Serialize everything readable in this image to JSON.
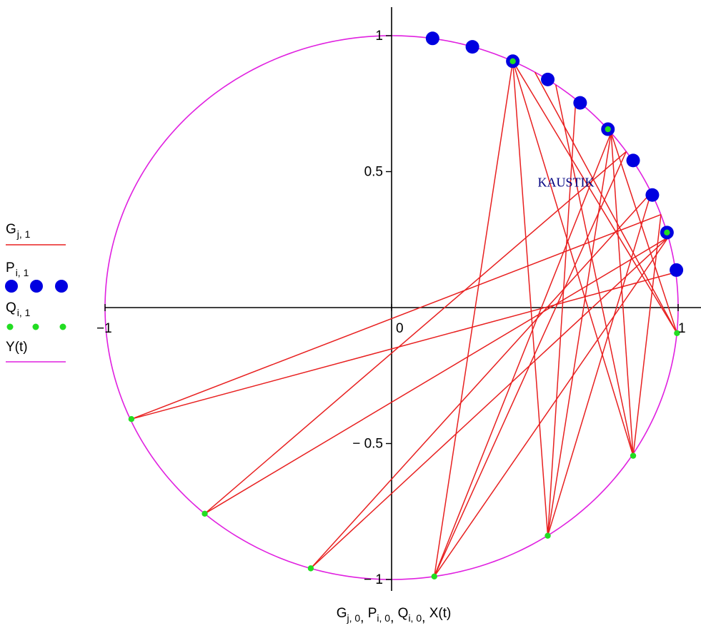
{
  "chart_data": {
    "type": "line",
    "xlim": [
      -1,
      1
    ],
    "ylim": [
      -1,
      1
    ],
    "grid": false,
    "legend_placement": "left",
    "x_ticks": [
      {
        "value": -1,
        "label": "−1"
      },
      {
        "value": 0,
        "label": "0"
      },
      {
        "value": 1,
        "label": "1"
      }
    ],
    "y_ticks": [
      {
        "value": 1,
        "label": "1"
      },
      {
        "value": 0.5,
        "label": "0.5"
      },
      {
        "value": -0.5,
        "label": "− 0.5"
      },
      {
        "value": -1,
        "label": "− 1"
      }
    ],
    "xlabel": {
      "terms": [
        {
          "base": "G",
          "sub": "j, 0"
        },
        {
          "base": "P",
          "sub": "i, 0"
        },
        {
          "base": "Q",
          "sub": "i, 0"
        },
        {
          "base": "X(t)",
          "sub": ""
        }
      ]
    },
    "annotation": {
      "text": "KAUSTIK",
      "x": 0.51,
      "y": 0.445,
      "color": "#000080"
    },
    "series": [
      {
        "name": "G",
        "legend_base": "G",
        "legend_sub": "j, 1",
        "style": "line",
        "color": "#e82020",
        "segments": [
          [
            [
              0.423,
              0.906
            ],
            [
              0.996,
              -0.094
            ]
          ],
          [
            [
              0.423,
              0.906
            ],
            [
              0.843,
              -0.545
            ]
          ],
          [
            [
              0.423,
              0.906
            ],
            [
              0.545,
              -0.839
            ]
          ],
          [
            [
              0.423,
              0.906
            ],
            [
              0.149,
              -0.989
            ]
          ],
          [
            [
              0.5,
              0.866
            ],
            [
              0.996,
              -0.094
            ]
          ],
          [
            [
              0.573,
              0.819
            ],
            [
              0.843,
              -0.545
            ]
          ],
          [
            [
              0.643,
              0.766
            ],
            [
              0.545,
              -0.839
            ]
          ],
          [
            [
              0.766,
              0.643
            ],
            [
              0.996,
              -0.094
            ]
          ],
          [
            [
              0.766,
              0.643
            ],
            [
              0.843,
              -0.545
            ]
          ],
          [
            [
              0.766,
              0.643
            ],
            [
              0.545,
              -0.839
            ]
          ],
          [
            [
              0.766,
              0.643
            ],
            [
              0.149,
              -0.989
            ]
          ],
          [
            [
              0.819,
              0.574
            ],
            [
              0.149,
              -0.989
            ]
          ],
          [
            [
              0.906,
              0.423
            ],
            [
              0.545,
              -0.839
            ]
          ],
          [
            [
              0.94,
              0.342
            ],
            [
              0.843,
              -0.545
            ]
          ],
          [
            [
              0.966,
              0.259
            ],
            [
              0.149,
              -0.989
            ]
          ],
          [
            [
              0.966,
              0.259
            ],
            [
              -0.282,
              -0.959
            ]
          ],
          [
            [
              0.966,
              0.259
            ],
            [
              -0.652,
              -0.758
            ]
          ],
          [
            [
              0.906,
              0.423
            ],
            [
              -0.282,
              -0.959
            ]
          ],
          [
            [
              0.819,
              0.574
            ],
            [
              -0.652,
              -0.758
            ]
          ],
          [
            [
              0.996,
              0.131
            ],
            [
              -0.908,
              -0.41
            ]
          ],
          [
            [
              0.94,
              0.342
            ],
            [
              -0.908,
              -0.41
            ]
          ]
        ]
      },
      {
        "name": "P",
        "legend_base": "P",
        "legend_sub": "i, 1",
        "style": "points",
        "color": "#0000e0",
        "x": [
          0.143,
          0.282,
          0.423,
          0.545,
          0.658,
          0.755,
          0.843,
          0.91,
          0.961,
          0.994
        ],
        "y": [
          0.99,
          0.959,
          0.906,
          0.839,
          0.753,
          0.656,
          0.541,
          0.414,
          0.276,
          0.138
        ]
      },
      {
        "name": "Q",
        "legend_base": "Q",
        "legend_sub": "i, 1",
        "style": "points",
        "color": "#22dd22",
        "x": [
          0.423,
          0.755,
          0.961,
          0.996,
          0.843,
          0.545,
          0.149,
          -0.282,
          -0.652,
          -0.908
        ],
        "y": [
          0.906,
          0.656,
          0.276,
          -0.094,
          -0.545,
          -0.839,
          -0.989,
          -0.959,
          -0.758,
          -0.41
        ]
      },
      {
        "name": "Y(t)",
        "legend_base": "Y(t)",
        "legend_sub": "",
        "style": "curve",
        "color": "#e020e0",
        "curve": "unit-circle"
      }
    ]
  }
}
